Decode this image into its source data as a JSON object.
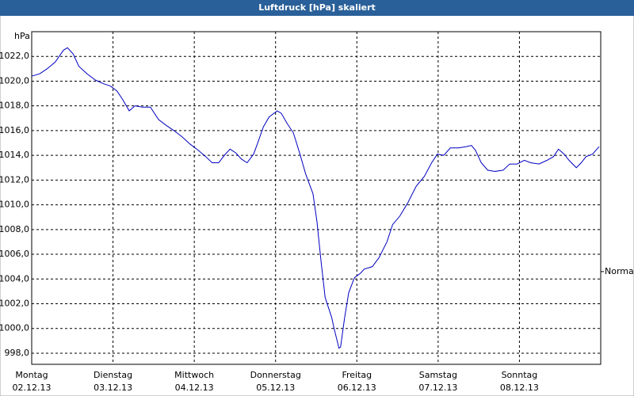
{
  "chart_data": {
    "type": "line",
    "title": "Luftdruck [hPa] skaliert",
    "y_unit": "hPa",
    "xlim": [
      0,
      7
    ],
    "ylim": [
      997.1,
      1024
    ],
    "xticks": [
      {
        "value": 0,
        "label": "Montag",
        "sublabel": "02.12.13"
      },
      {
        "value": 1,
        "label": "Dienstag",
        "sublabel": "03.12.13"
      },
      {
        "value": 2,
        "label": "Mittwoch",
        "sublabel": "04.12.13"
      },
      {
        "value": 3,
        "label": "Donnerstag",
        "sublabel": "05.12.13"
      },
      {
        "value": 4,
        "label": "Freitag",
        "sublabel": "06.12.13"
      },
      {
        "value": 5,
        "label": "Samstag",
        "sublabel": "07.12.13"
      },
      {
        "value": 6,
        "label": "Sonntag",
        "sublabel": "08.12.13"
      }
    ],
    "yticks": [
      {
        "value": 998,
        "label": "998,0"
      },
      {
        "value": 1000,
        "label": "1000,0"
      },
      {
        "value": 1002,
        "label": "1002,0"
      },
      {
        "value": 1004,
        "label": "1004,0"
      },
      {
        "value": 1006,
        "label": "1006,0"
      },
      {
        "value": 1008,
        "label": "1008,0"
      },
      {
        "value": 1010,
        "label": "1010,0"
      },
      {
        "value": 1012,
        "label": "1012,0"
      },
      {
        "value": 1014,
        "label": "1014,0"
      },
      {
        "value": 1016,
        "label": "1016,0"
      },
      {
        "value": 1018,
        "label": "1018,0"
      },
      {
        "value": 1020,
        "label": "1020,0"
      },
      {
        "value": 1022,
        "label": "1022,0"
      }
    ],
    "reference": {
      "value": 1004.6,
      "label": "Normal"
    },
    "grid": true,
    "series": [
      {
        "color": "#0000c0",
        "x": [
          0,
          0.1,
          0.19,
          0.29,
          0.39,
          0.44,
          0.51,
          0.58,
          0.68,
          0.78,
          0.88,
          0.97,
          1.05,
          1.12,
          1.2,
          1.27,
          1.36,
          1.46,
          1.56,
          1.66,
          1.75,
          1.85,
          1.95,
          2.05,
          2.14,
          2.22,
          2.3,
          2.37,
          2.44,
          2.51,
          2.58,
          2.65,
          2.73,
          2.78,
          2.85,
          2.92,
          3.02,
          3.07,
          3.14,
          3.22,
          3.3,
          3.37,
          3.46,
          3.51,
          3.56,
          3.61,
          3.69,
          3.72,
          3.78,
          3.8,
          3.85,
          3.9,
          3.97,
          4.05,
          4.09,
          4.19,
          4.27,
          4.37,
          4.44,
          4.53,
          4.63,
          4.73,
          4.83,
          4.92,
          4.99,
          5.07,
          5.15,
          5.25,
          5.34,
          5.41,
          5.46,
          5.53,
          5.61,
          5.7,
          5.8,
          5.88,
          5.97,
          6.06,
          6.14,
          6.24,
          6.34,
          6.42,
          6.48,
          6.55,
          6.61,
          6.7,
          6.76,
          6.82,
          6.9,
          6.98
        ],
        "values": [
          1020.4,
          1020.6,
          1021.0,
          1021.55,
          1022.5,
          1022.7,
          1022.2,
          1021.2,
          1020.6,
          1020.1,
          1019.8,
          1019.6,
          1019.2,
          1018.5,
          1017.6,
          1018.0,
          1017.9,
          1017.9,
          1016.9,
          1016.4,
          1016.0,
          1015.5,
          1014.9,
          1014.4,
          1013.9,
          1013.4,
          1013.4,
          1014.0,
          1014.5,
          1014.2,
          1013.7,
          1013.4,
          1014.1,
          1015.0,
          1016.3,
          1017.1,
          1017.6,
          1017.4,
          1016.6,
          1015.8,
          1014.1,
          1012.5,
          1010.9,
          1008.6,
          1005.4,
          1002.5,
          1000.9,
          1000.0,
          998.4,
          998.5,
          1000.9,
          1002.9,
          1004.1,
          1004.5,
          1004.8,
          1005.0,
          1005.7,
          1007.0,
          1008.4,
          1009.1,
          1010.2,
          1011.5,
          1012.3,
          1013.4,
          1014.1,
          1014.0,
          1014.6,
          1014.6,
          1014.7,
          1014.8,
          1014.4,
          1013.4,
          1012.8,
          1012.7,
          1012.8,
          1013.3,
          1013.3,
          1013.6,
          1013.4,
          1013.3,
          1013.6,
          1013.9,
          1014.5,
          1014.1,
          1013.6,
          1013.0,
          1013.4,
          1013.9,
          1014.1,
          1014.7
        ]
      }
    ]
  }
}
